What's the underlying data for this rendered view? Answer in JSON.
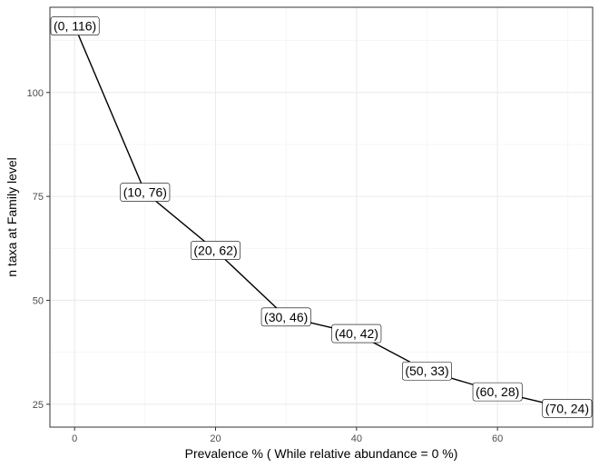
{
  "chart_data": {
    "type": "line",
    "xlabel": "Prevalence % ( While relative abundance = 0 %)",
    "ylabel": "n taxa at Family level",
    "x_ticks": [
      0,
      20,
      40,
      60
    ],
    "y_ticks": [
      25,
      50,
      75,
      100
    ],
    "xlim": [
      -3.5,
      73.5
    ],
    "ylim": [
      19.5,
      120.5
    ],
    "grid": true,
    "series": [
      {
        "x": [
          0,
          10,
          20,
          30,
          40,
          50,
          60,
          70
        ],
        "y": [
          116,
          76,
          62,
          46,
          42,
          33,
          28,
          24
        ],
        "labels": [
          "(0, 116)",
          "(10, 76)",
          "(20, 62)",
          "(30, 46)",
          "(40, 42)",
          "(50, 33)",
          "(60, 28)",
          "(70, 24)"
        ]
      }
    ]
  }
}
